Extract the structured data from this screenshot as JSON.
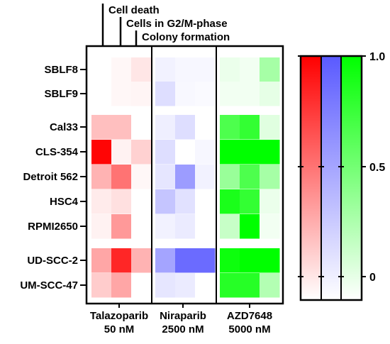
{
  "chart_data": {
    "type": "heatmap",
    "col_labels": [
      "Cell death",
      "Cells in G2/M-phase",
      "Colony formation"
    ],
    "rows": [
      "SBLF8",
      "SBLF9",
      "Cal33",
      "CLS-354",
      "Detroit 562",
      "HSC4",
      "RPMI2650",
      "UD-SCC-2",
      "UM-SCC-47"
    ],
    "drugs": [
      {
        "name": "Talazoparib",
        "dose": "50 nM",
        "color": "#ff0000"
      },
      {
        "name": "Niraparib",
        "dose": "2500 nM",
        "color": "#5a5aff"
      },
      {
        "name": "AZD7648",
        "dose": "5000 nM",
        "color": "#00ff00"
      }
    ],
    "values": {
      "Talazoparib": [
        [
          0.0,
          0.03,
          0.1
        ],
        [
          0.0,
          0.03,
          0.04
        ],
        [
          0.25,
          0.25,
          0.0
        ],
        [
          0.98,
          0.05,
          0.18
        ],
        [
          0.3,
          0.55,
          0.03
        ],
        [
          0.08,
          0.12,
          0.0
        ],
        [
          0.05,
          0.4,
          0.0
        ],
        [
          0.35,
          0.85,
          0.3
        ],
        [
          0.2,
          0.35,
          0.0
        ]
      ],
      "Niraparib": [
        [
          0.08,
          0.05,
          0.05
        ],
        [
          0.2,
          0.04,
          0.03
        ],
        [
          0.1,
          0.2,
          0.0
        ],
        [
          0.2,
          0.0,
          0.05
        ],
        [
          0.15,
          0.6,
          0.08
        ],
        [
          0.35,
          0.18,
          0.0
        ],
        [
          0.08,
          0.12,
          0.0
        ],
        [
          0.55,
          0.9,
          0.9
        ],
        [
          0.15,
          0.12,
          0.0
        ]
      ],
      "AZD7648": [
        [
          0.08,
          0.05,
          0.35
        ],
        [
          0.05,
          0.05,
          0.1
        ],
        [
          0.7,
          0.8,
          0.12
        ],
        [
          1.0,
          1.0,
          1.0
        ],
        [
          0.4,
          0.7,
          0.35
        ],
        [
          0.9,
          0.8,
          0.08
        ],
        [
          0.22,
          1.0,
          0.05
        ],
        [
          0.95,
          1.0,
          1.0
        ],
        [
          0.85,
          0.85,
          0.3
        ]
      ]
    },
    "colorbar": {
      "ticks": [
        "1.0",
        "0.5",
        "0"
      ],
      "range": [
        0,
        1.0
      ]
    }
  }
}
